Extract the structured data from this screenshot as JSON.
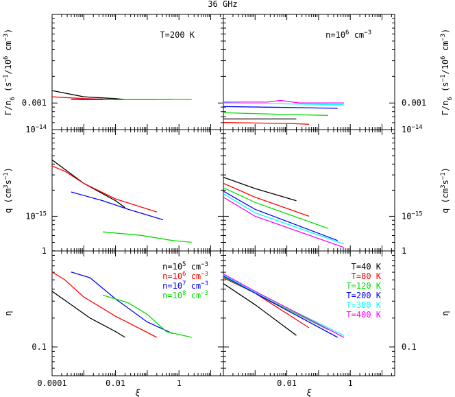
{
  "chart_data": {
    "type": "line",
    "title": "36 GHz",
    "xlabel": "ξ",
    "x_scale": "log",
    "x_range_log10": [
      -4,
      1.4
    ],
    "x_ticks": [
      {
        "log": -4,
        "label": "0.0001"
      },
      {
        "log": -2,
        "label": "0.01"
      },
      {
        "log": 0,
        "label": "1"
      }
    ],
    "rows": [
      {
        "ylabel": "Γ/n₆ (s⁻¹/10⁶ cm⁻³)",
        "ylabel_base": "Γ/n",
        "ylabel_sub": "6",
        "ylabel_rest": " (s",
        "ylabel_sup1": "−1",
        "ylabel_mid": "/10",
        "ylabel_sup2": "6",
        "ylabel_mid2": " cm",
        "ylabel_sup3": "−3",
        "ylabel_end": ")",
        "y_scale": "log",
        "y_range_log10": [
          -3.3,
          -2.0
        ],
        "y_ticks": [
          {
            "log": -3,
            "label": "0.001"
          }
        ]
      },
      {
        "ylabel": "q (cm³s⁻¹)",
        "ylabel_base": "q (cm",
        "ylabel_sup1": "3",
        "ylabel_mid": "s",
        "ylabel_sup2": "−1",
        "ylabel_end": ")",
        "y_scale": "log",
        "y_range_log10": [
          -15.4,
          -14.0
        ],
        "y_ticks": [
          {
            "log": -14,
            "label_base": "10",
            "label_exp": "−14"
          },
          {
            "log": -15,
            "label_base": "10",
            "label_exp": "−15"
          }
        ]
      },
      {
        "ylabel": "η",
        "y_scale": "log",
        "y_range_log10": [
          -1.3,
          0.0
        ],
        "y_ticks": [
          {
            "log": 0,
            "label": "1"
          },
          {
            "log": -1,
            "label": "0.1"
          }
        ]
      }
    ],
    "left_column": {
      "annotation": "T=200 K",
      "legend": [
        {
          "base": "n=10",
          "exp": "5",
          "unit": " cm",
          "unit_exp": "−3",
          "color": "#000000"
        },
        {
          "base": "n=10",
          "exp": "6",
          "unit": " cm",
          "unit_exp": "−3",
          "color": "#ff0000"
        },
        {
          "base": "n=10",
          "exp": "7",
          "unit": " cm",
          "unit_exp": "−3",
          "color": "#0000ff"
        },
        {
          "base": "n=10",
          "exp": "8",
          "unit": " cm",
          "unit_exp": "−3",
          "color": "#00dd00"
        }
      ],
      "series": [
        {
          "color": "#000000",
          "gamma": [
            [
              -4.0,
              -2.86
            ],
            [
              -3.0,
              -2.93
            ],
            [
              -2.0,
              -2.95
            ],
            [
              -1.7,
              -2.96
            ]
          ],
          "q": [
            [
              -4.0,
              -14.35
            ],
            [
              -3.0,
              -14.62
            ],
            [
              -2.0,
              -14.82
            ],
            [
              -1.7,
              -14.9
            ]
          ],
          "eta": [
            [
              -4.0,
              -0.42
            ],
            [
              -3.4,
              -0.56
            ],
            [
              -2.8,
              -0.7
            ],
            [
              -2.0,
              -0.84
            ],
            [
              -1.7,
              -0.9
            ]
          ]
        },
        {
          "color": "#ff0000",
          "gamma": [
            [
              -4.0,
              -2.93
            ],
            [
              -3.0,
              -2.95
            ],
            [
              -2.0,
              -2.96
            ],
            [
              -0.7,
              -2.96
            ]
          ],
          "q": [
            [
              -4.0,
              -14.42
            ],
            [
              -3.6,
              -14.48
            ],
            [
              -3.0,
              -14.62
            ],
            [
              -2.0,
              -14.8
            ],
            [
              -0.7,
              -14.95
            ]
          ],
          "eta": [
            [
              -4.0,
              -0.22
            ],
            [
              -3.6,
              -0.3
            ],
            [
              -3.0,
              -0.48
            ],
            [
              -2.0,
              -0.68
            ],
            [
              -0.7,
              -0.9
            ]
          ]
        },
        {
          "color": "#0000ff",
          "gamma": [
            [
              -3.4,
              -2.96
            ],
            [
              -2.0,
              -2.96
            ],
            [
              -0.2,
              -2.96
            ]
          ],
          "q": [
            [
              -3.4,
              -14.72
            ],
            [
              -2.4,
              -14.82
            ],
            [
              -1.6,
              -14.92
            ],
            [
              -0.5,
              -15.04
            ]
          ],
          "eta": [
            [
              -3.4,
              -0.22
            ],
            [
              -2.8,
              -0.28
            ],
            [
              -2.0,
              -0.5
            ],
            [
              -1.0,
              -0.74
            ],
            [
              -0.2,
              -0.86
            ]
          ]
        },
        {
          "color": "#00dd00",
          "gamma": [
            [
              -2.4,
              -2.96
            ],
            [
              -1.0,
              -2.96
            ],
            [
              0.4,
              -2.96
            ]
          ],
          "q": [
            [
              -2.4,
              -15.18
            ],
            [
              -1.2,
              -15.22
            ],
            [
              -0.2,
              -15.28
            ],
            [
              0.4,
              -15.3
            ]
          ],
          "eta": [
            [
              -2.4,
              -0.46
            ],
            [
              -1.6,
              -0.54
            ],
            [
              -1.0,
              -0.66
            ],
            [
              -0.4,
              -0.84
            ],
            [
              0.4,
              -0.9
            ]
          ]
        }
      ]
    },
    "right_column": {
      "annotation_base": "n=10",
      "annotation_exp": "6",
      "annotation_unit": " cm",
      "annotation_unit_exp": "−3",
      "legend": [
        {
          "text": "T=40 K",
          "color": "#000000"
        },
        {
          "text": "T=80 K",
          "color": "#ff0000"
        },
        {
          "text": "T=120 K",
          "color": "#00dd00"
        },
        {
          "text": "T=200 K",
          "color": "#0000ff"
        },
        {
          "text": "T=300 K",
          "color": "#00ffff"
        },
        {
          "text": "T=400 K",
          "color": "#ff00ff"
        }
      ],
      "series": [
        {
          "color": "#000000",
          "gamma": [
            [
              -4.0,
              -3.18
            ],
            [
              -2.0,
              -3.18
            ],
            [
              -1.7,
              -3.18
            ]
          ],
          "q": [
            [
              -4.0,
              -14.55
            ],
            [
              -3.0,
              -14.68
            ],
            [
              -1.7,
              -14.82
            ]
          ],
          "eta": [
            [
              -4.0,
              -0.34
            ],
            [
              -3.0,
              -0.56
            ],
            [
              -1.7,
              -0.88
            ]
          ]
        },
        {
          "color": "#ff0000",
          "gamma": [
            [
              -4.0,
              -3.22
            ],
            [
              -2.0,
              -3.23
            ],
            [
              -1.3,
              -3.24
            ]
          ],
          "q": [
            [
              -4.0,
              -14.62
            ],
            [
              -3.0,
              -14.78
            ],
            [
              -1.3,
              -15.0
            ]
          ],
          "eta": [
            [
              -4.0,
              -0.28
            ],
            [
              -3.0,
              -0.44
            ],
            [
              -1.3,
              -0.8
            ]
          ]
        },
        {
          "color": "#00dd00",
          "gamma": [
            [
              -4.0,
              -3.11
            ],
            [
              -2.0,
              -3.13
            ],
            [
              -0.7,
              -3.14
            ]
          ],
          "q": [
            [
              -4.0,
              -14.67
            ],
            [
              -3.0,
              -14.84
            ],
            [
              -0.7,
              -15.14
            ]
          ],
          "eta": [
            [
              -4.0,
              -0.27
            ],
            [
              -3.0,
              -0.44
            ],
            [
              -0.7,
              -0.82
            ]
          ]
        },
        {
          "color": "#0000ff",
          "gamma": [
            [
              -4.0,
              -3.04
            ],
            [
              -2.0,
              -3.05
            ],
            [
              -0.4,
              -3.06
            ]
          ],
          "q": [
            [
              -4.0,
              -14.71
            ],
            [
              -3.0,
              -14.92
            ],
            [
              -0.4,
              -15.28
            ]
          ],
          "eta": [
            [
              -4.0,
              -0.26
            ],
            [
              -3.0,
              -0.44
            ],
            [
              -0.4,
              -0.9
            ]
          ]
        },
        {
          "color": "#00ffff",
          "gamma": [
            [
              -4.0,
              -3.0
            ],
            [
              -2.0,
              -3.01
            ],
            [
              -0.2,
              -3.02
            ]
          ],
          "q": [
            [
              -4.0,
              -14.74
            ],
            [
              -3.0,
              -14.96
            ],
            [
              -0.2,
              -15.32
            ]
          ],
          "eta": [
            [
              -4.0,
              -0.25
            ],
            [
              -3.0,
              -0.43
            ],
            [
              -0.2,
              -0.88
            ]
          ]
        },
        {
          "color": "#ff00ff",
          "gamma": [
            [
              -4.0,
              -2.99
            ],
            [
              -2.6,
              -2.99
            ],
            [
              -2.2,
              -2.97
            ],
            [
              -1.6,
              -3.0
            ],
            [
              -0.2,
              -3.0
            ]
          ],
          "q": [
            [
              -4.0,
              -14.78
            ],
            [
              -3.0,
              -15.0
            ],
            [
              -0.2,
              -15.36
            ]
          ],
          "eta": [
            [
              -4.0,
              -0.24
            ],
            [
              -3.0,
              -0.42
            ],
            [
              -0.2,
              -0.9
            ]
          ]
        }
      ]
    }
  }
}
